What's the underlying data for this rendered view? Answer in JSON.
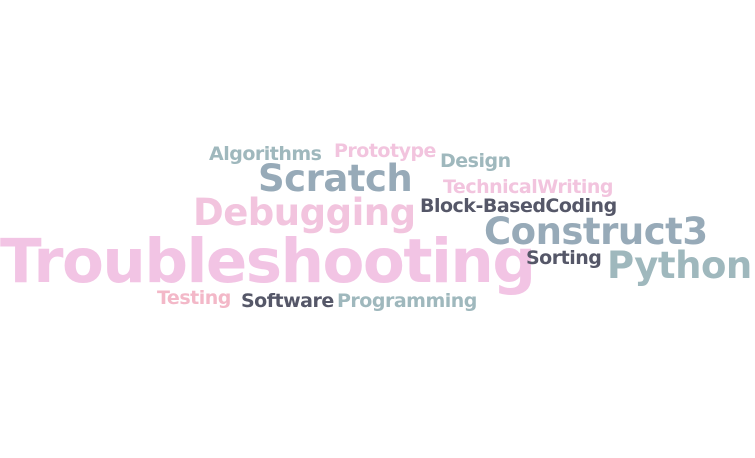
{
  "words": [
    {
      "id": "algorithms",
      "text": "Algorithms",
      "color": "#9fb8bd"
    },
    {
      "id": "prototype",
      "text": "Prototype",
      "color": "#f2c4de"
    },
    {
      "id": "design",
      "text": "Design",
      "color": "#9fb8bd"
    },
    {
      "id": "scratch",
      "text": "Scratch",
      "color": "#97aab8"
    },
    {
      "id": "technicalwriting",
      "text": "TechnicalWriting",
      "color": "#f2c4de"
    },
    {
      "id": "debugging",
      "text": "Debugging",
      "color": "#f2c4de"
    },
    {
      "id": "block-basedcoding",
      "text": "Block-BasedCoding",
      "color": "#555768"
    },
    {
      "id": "construct3",
      "text": "Construct3",
      "color": "#97aab8"
    },
    {
      "id": "troubleshooting",
      "text": "Troubleshooting",
      "color": "#f2c4e4"
    },
    {
      "id": "sorting",
      "text": "Sorting",
      "color": "#555768"
    },
    {
      "id": "python",
      "text": "Python",
      "color": "#9fb8bd"
    },
    {
      "id": "testing",
      "text": "Testing",
      "color": "#f3b8c8"
    },
    {
      "id": "software",
      "text": "Software",
      "color": "#555768"
    },
    {
      "id": "programming",
      "text": "Programming",
      "color": "#9fb8bd"
    }
  ]
}
